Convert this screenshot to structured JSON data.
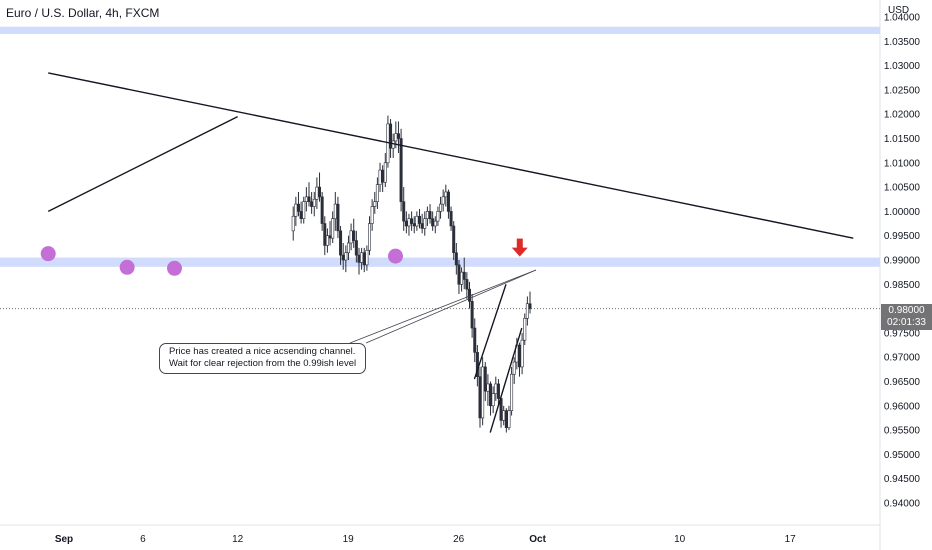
{
  "header": {
    "title": "Euro / U.S. Dollar, 4h, FXCM",
    "currency": "USD"
  },
  "price_tag": {
    "price": "0.98000",
    "countdown": "02:01:33"
  },
  "annotation": {
    "line1": "Price has created a nice acsending channel.",
    "line2": "Wait for clear rejection from the 0.99ish level"
  },
  "colors": {
    "zone": "#d1dcfd",
    "candle_up": "#ffffff",
    "candle_down": "#2a2e39",
    "wick": "#2a2e39",
    "marker": "#c36fd6",
    "arrow": "#e02a2a",
    "trendline": "#131722"
  },
  "chart_data": {
    "type": "candlestick",
    "title": "Euro / U.S. Dollar, 4h, FXCM",
    "y_axis": {
      "unit": "USD",
      "ticks": [
        "0.94000",
        "0.94500",
        "0.95000",
        "0.95500",
        "0.96000",
        "0.96500",
        "0.97000",
        "0.97500",
        "0.98000",
        "0.98500",
        "0.99000",
        "0.99500",
        "1.00000",
        "1.00500",
        "1.01000",
        "1.01500",
        "1.02000",
        "1.02500",
        "1.03000",
        "1.03500",
        "1.04000"
      ],
      "range": [
        0.939,
        1.0425
      ]
    },
    "x_axis": {
      "ticks": [
        "Sep",
        "6",
        "12",
        "19",
        "26",
        "Oct",
        "10",
        "17"
      ],
      "range": [
        "2022-08-31",
        "2022-10-21"
      ]
    },
    "last_price": 0.98,
    "horizontal_zones": [
      {
        "from": 1.0365,
        "to": 1.038
      },
      {
        "from": 0.9886,
        "to": 0.9905
      }
    ],
    "trendlines": [
      {
        "name": "descending resistance",
        "from": {
          "t": "2022-08-31",
          "p": 1.0285
        },
        "to": {
          "t": "2022-10-21",
          "p": 0.9945
        }
      },
      {
        "name": "rising line",
        "from": {
          "t": "2022-08-31",
          "p": 1.0
        },
        "to": {
          "t": "2022-09-12",
          "p": 1.0195
        }
      },
      {
        "name": "channel upper",
        "from": {
          "t": "2022-09-27",
          "p": 0.9655
        },
        "to": {
          "t": "2022-09-29",
          "p": 0.985
        }
      },
      {
        "name": "channel lower",
        "from": {
          "t": "2022-09-28",
          "p": 0.9545
        },
        "to": {
          "t": "2022-09-30",
          "p": 0.976
        }
      }
    ],
    "touch_markers": [
      {
        "t": "2022-08-31",
        "p": 0.9913
      },
      {
        "t": "2022-09-05",
        "p": 0.9885
      },
      {
        "t": "2022-09-08",
        "p": 0.9883
      },
      {
        "t": "2022-09-22",
        "p": 0.9908
      }
    ],
    "down_arrow": {
      "t": "2022-09-30",
      "p": 0.9905
    },
    "candles": [
      {
        "o": 0.996,
        "h": 1.001,
        "l": 0.994,
        "c": 0.999
      },
      {
        "o": 0.999,
        "h": 1.003,
        "l": 0.997,
        "c": 1.0015
      },
      {
        "o": 1.0015,
        "h": 1.004,
        "l": 0.999,
        "c": 1.0
      },
      {
        "o": 1.0,
        "h": 1.002,
        "l": 0.9975,
        "c": 0.9985
      },
      {
        "o": 0.9985,
        "h": 1.003,
        "l": 0.9975,
        "c": 1.002
      },
      {
        "o": 1.002,
        "h": 1.005,
        "l": 1.0,
        "c": 1.003
      },
      {
        "o": 1.003,
        "h": 1.006,
        "l": 1.001,
        "c": 1.002
      },
      {
        "o": 1.002,
        "h": 1.004,
        "l": 0.9995,
        "c": 1.001
      },
      {
        "o": 1.001,
        "h": 1.004,
        "l": 0.999,
        "c": 1.0025
      },
      {
        "o": 1.0025,
        "h": 1.007,
        "l": 1.0005,
        "c": 1.005
      },
      {
        "o": 1.005,
        "h": 1.008,
        "l": 1.002,
        "c": 1.003
      },
      {
        "o": 1.003,
        "h": 1.004,
        "l": 0.996,
        "c": 0.9975
      },
      {
        "o": 0.9975,
        "h": 0.999,
        "l": 0.991,
        "c": 0.993
      },
      {
        "o": 0.993,
        "h": 0.9965,
        "l": 0.9915,
        "c": 0.995
      },
      {
        "o": 0.995,
        "h": 0.998,
        "l": 0.993,
        "c": 0.9945
      },
      {
        "o": 0.9945,
        "h": 1.0,
        "l": 0.9935,
        "c": 0.9985
      },
      {
        "o": 0.9985,
        "h": 1.004,
        "l": 0.996,
        "c": 1.0015
      },
      {
        "o": 1.0015,
        "h": 1.003,
        "l": 0.9945,
        "c": 0.996
      },
      {
        "o": 0.996,
        "h": 0.997,
        "l": 0.989,
        "c": 0.991
      },
      {
        "o": 0.991,
        "h": 0.9935,
        "l": 0.988,
        "c": 0.99
      },
      {
        "o": 0.99,
        "h": 0.993,
        "l": 0.9875,
        "c": 0.9915
      },
      {
        "o": 0.9915,
        "h": 0.995,
        "l": 0.99,
        "c": 0.9935
      },
      {
        "o": 0.9935,
        "h": 0.9975,
        "l": 0.992,
        "c": 0.996
      },
      {
        "o": 0.996,
        "h": 0.9985,
        "l": 0.9925,
        "c": 0.994
      },
      {
        "o": 0.994,
        "h": 0.996,
        "l": 0.9895,
        "c": 0.991
      },
      {
        "o": 0.991,
        "h": 0.9925,
        "l": 0.987,
        "c": 0.9895
      },
      {
        "o": 0.9895,
        "h": 0.9925,
        "l": 0.988,
        "c": 0.9915
      },
      {
        "o": 0.9915,
        "h": 0.9925,
        "l": 0.9875,
        "c": 0.989
      },
      {
        "o": 0.989,
        "h": 0.993,
        "l": 0.9878,
        "c": 0.992
      },
      {
        "o": 0.992,
        "h": 0.999,
        "l": 0.991,
        "c": 0.9975
      },
      {
        "o": 0.9975,
        "h": 1.0025,
        "l": 0.996,
        "c": 1.001
      },
      {
        "o": 1.001,
        "h": 1.004,
        "l": 0.9995,
        "c": 1.002
      },
      {
        "o": 1.002,
        "h": 1.007,
        "l": 1.0005,
        "c": 1.0055
      },
      {
        "o": 1.0055,
        "h": 1.01,
        "l": 1.004,
        "c": 1.0085
      },
      {
        "o": 1.0085,
        "h": 1.0095,
        "l": 1.004,
        "c": 1.006
      },
      {
        "o": 1.006,
        "h": 1.012,
        "l": 1.005,
        "c": 1.01
      },
      {
        "o": 1.01,
        "h": 1.0197,
        "l": 1.009,
        "c": 1.018
      },
      {
        "o": 1.018,
        "h": 1.019,
        "l": 1.011,
        "c": 1.013
      },
      {
        "o": 1.013,
        "h": 1.016,
        "l": 1.011,
        "c": 1.0145
      },
      {
        "o": 1.0145,
        "h": 1.0185,
        "l": 1.013,
        "c": 1.016
      },
      {
        "o": 1.016,
        "h": 1.0185,
        "l": 1.012,
        "c": 1.015
      },
      {
        "o": 1.015,
        "h": 1.017,
        "l": 1.0,
        "c": 1.002
      },
      {
        "o": 1.002,
        "h": 1.005,
        "l": 0.996,
        "c": 0.998
      },
      {
        "o": 0.998,
        "h": 1.0,
        "l": 0.9955,
        "c": 0.997
      },
      {
        "o": 0.997,
        "h": 0.9995,
        "l": 0.995,
        "c": 0.9985
      },
      {
        "o": 0.9985,
        "h": 1.0,
        "l": 0.996,
        "c": 0.9975
      },
      {
        "o": 0.9975,
        "h": 0.999,
        "l": 0.9955,
        "c": 0.997
      },
      {
        "o": 0.997,
        "h": 1.0,
        "l": 0.996,
        "c": 0.999
      },
      {
        "o": 0.999,
        "h": 1.0005,
        "l": 0.9965,
        "c": 0.9975
      },
      {
        "o": 0.9975,
        "h": 0.9995,
        "l": 0.9955,
        "c": 0.9965
      },
      {
        "o": 0.9965,
        "h": 1.0,
        "l": 0.995,
        "c": 0.9985
      },
      {
        "o": 0.9985,
        "h": 1.001,
        "l": 0.997,
        "c": 1.0
      },
      {
        "o": 1.0,
        "h": 1.0015,
        "l": 0.9975,
        "c": 0.9985
      },
      {
        "o": 0.9985,
        "h": 1.0,
        "l": 0.996,
        "c": 0.997
      },
      {
        "o": 0.997,
        "h": 0.999,
        "l": 0.9955,
        "c": 0.998
      },
      {
        "o": 0.998,
        "h": 1.001,
        "l": 0.997,
        "c": 1.0
      },
      {
        "o": 1.0,
        "h": 1.003,
        "l": 0.9985,
        "c": 1.0015
      },
      {
        "o": 1.0015,
        "h": 1.0045,
        "l": 1.0,
        "c": 1.003
      },
      {
        "o": 1.003,
        "h": 1.0055,
        "l": 1.001,
        "c": 1.004
      },
      {
        "o": 1.004,
        "h": 1.0045,
        "l": 0.9985,
        "c": 1.0
      },
      {
        "o": 1.0,
        "h": 1.001,
        "l": 0.996,
        "c": 0.997
      },
      {
        "o": 0.997,
        "h": 0.998,
        "l": 0.99,
        "c": 0.9915
      },
      {
        "o": 0.9915,
        "h": 0.9935,
        "l": 0.987,
        "c": 0.989
      },
      {
        "o": 0.989,
        "h": 0.99,
        "l": 0.983,
        "c": 0.985
      },
      {
        "o": 0.985,
        "h": 0.9885,
        "l": 0.9835,
        "c": 0.9875
      },
      {
        "o": 0.9875,
        "h": 0.9905,
        "l": 0.984,
        "c": 0.986
      },
      {
        "o": 0.986,
        "h": 0.9875,
        "l": 0.982,
        "c": 0.984
      },
      {
        "o": 0.984,
        "h": 0.9855,
        "l": 0.98,
        "c": 0.9815
      },
      {
        "o": 0.9815,
        "h": 0.983,
        "l": 0.974,
        "c": 0.976
      },
      {
        "o": 0.976,
        "h": 0.978,
        "l": 0.969,
        "c": 0.971
      },
      {
        "o": 0.971,
        "h": 0.9725,
        "l": 0.964,
        "c": 0.966
      },
      {
        "o": 0.966,
        "h": 0.968,
        "l": 0.9555,
        "c": 0.9575
      },
      {
        "o": 0.9575,
        "h": 0.97,
        "l": 0.956,
        "c": 0.968
      },
      {
        "o": 0.968,
        "h": 0.969,
        "l": 0.961,
        "c": 0.963
      },
      {
        "o": 0.963,
        "h": 0.9665,
        "l": 0.96,
        "c": 0.9645
      },
      {
        "o": 0.9645,
        "h": 0.965,
        "l": 0.958,
        "c": 0.96
      },
      {
        "o": 0.96,
        "h": 0.964,
        "l": 0.9585,
        "c": 0.9625
      },
      {
        "o": 0.9625,
        "h": 0.966,
        "l": 0.961,
        "c": 0.9645
      },
      {
        "o": 0.9645,
        "h": 0.9655,
        "l": 0.96,
        "c": 0.9615
      },
      {
        "o": 0.9615,
        "h": 0.962,
        "l": 0.9555,
        "c": 0.957
      },
      {
        "o": 0.957,
        "h": 0.96,
        "l": 0.956,
        "c": 0.959
      },
      {
        "o": 0.959,
        "h": 0.9595,
        "l": 0.9545,
        "c": 0.9555
      },
      {
        "o": 0.9555,
        "h": 0.96,
        "l": 0.955,
        "c": 0.959
      },
      {
        "o": 0.959,
        "h": 0.968,
        "l": 0.958,
        "c": 0.9665
      },
      {
        "o": 0.9665,
        "h": 0.97,
        "l": 0.9645,
        "c": 0.969
      },
      {
        "o": 0.969,
        "h": 0.974,
        "l": 0.9675,
        "c": 0.9725
      },
      {
        "o": 0.9725,
        "h": 0.973,
        "l": 0.966,
        "c": 0.968
      },
      {
        "o": 0.968,
        "h": 0.975,
        "l": 0.9665,
        "c": 0.9735
      },
      {
        "o": 0.9735,
        "h": 0.979,
        "l": 0.9725,
        "c": 0.978
      },
      {
        "o": 0.978,
        "h": 0.9825,
        "l": 0.9765,
        "c": 0.981
      },
      {
        "o": 0.981,
        "h": 0.9835,
        "l": 0.979,
        "c": 0.98
      }
    ]
  }
}
